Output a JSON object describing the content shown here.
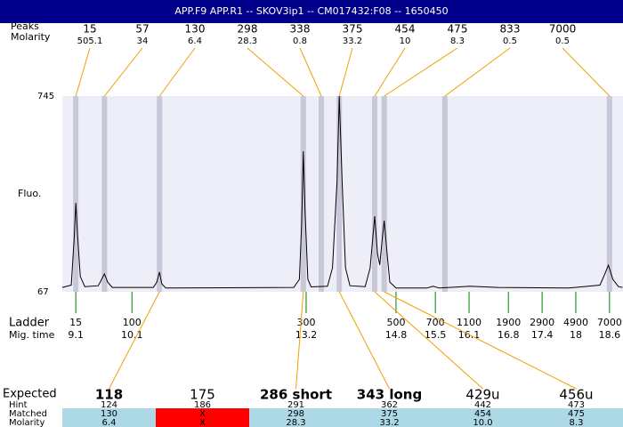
{
  "chart_data": {
    "type": "line",
    "title": "APP.F9  APP.R1 -- SKOV3ip1 -- CM017432:F08 -- 1650450",
    "y_label": "Fluo.",
    "xlim": [
      8.86,
      18.84
    ],
    "ylim": [
      67,
      745
    ],
    "yticks": [
      67,
      745
    ],
    "color": "#000000",
    "plot_color": "#eeeef8",
    "x": [
      8.86,
      9.02,
      9.07,
      9.1,
      9.13,
      9.18,
      9.26,
      9.5,
      9.56,
      9.61,
      9.67,
      9.75,
      10.48,
      10.54,
      10.59,
      10.63,
      10.7,
      12.98,
      13.08,
      13.12,
      13.15,
      13.18,
      13.23,
      13.29,
      13.58,
      13.67,
      13.75,
      13.79,
      13.84,
      13.9,
      13.98,
      14.25,
      14.34,
      14.42,
      14.47,
      14.51,
      14.56,
      14.59,
      14.64,
      14.69,
      14.8,
      15.35,
      15.46,
      15.57,
      16.11,
      16.61,
      17.88,
      18.43,
      18.52,
      18.58,
      18.66,
      18.76,
      18.83
    ],
    "values": [
      82,
      90,
      250,
      375,
      270,
      120,
      85,
      88,
      110,
      129,
      100,
      82,
      82,
      100,
      135,
      95,
      80,
      82,
      110,
      300,
      554,
      350,
      110,
      84,
      86,
      150,
      450,
      745,
      450,
      150,
      88,
      85,
      150,
      329,
      200,
      160,
      260,
      314,
      200,
      100,
      80,
      80,
      86,
      80,
      86,
      82,
      80,
      90,
      130,
      159,
      110,
      85,
      82
    ],
    "peaks": {
      "label": "Peaks",
      "molarity_label": "Molarity",
      "sizes": [
        15,
        57,
        130,
        298,
        338,
        375,
        454,
        475,
        833,
        7000
      ],
      "molarity": [
        505.1,
        34,
        6.4,
        28.3,
        0.8,
        33.2,
        10,
        8.3,
        0.5,
        0.5
      ],
      "x": [
        9.1,
        9.61,
        10.59,
        13.15,
        13.47,
        13.79,
        14.42,
        14.59,
        15.67,
        18.6
      ],
      "color": "#c8c8d8",
      "link_color": "#f0a000"
    },
    "ladder": {
      "label": "Ladder",
      "time_label": "Mig. time",
      "sizes": [
        15,
        100,
        300,
        500,
        700,
        1100,
        1900,
        2900,
        4900,
        7000
      ],
      "x": [
        9.1,
        10.1,
        13.2,
        14.8,
        15.5,
        16.1,
        16.8,
        17.4,
        18,
        18.6
      ],
      "color": "#008000"
    },
    "table": {
      "row_labels": [
        "Expected",
        "Hint",
        "Matched",
        "Molarity"
      ],
      "expected": [
        "118",
        "175",
        "286 short",
        "343 long",
        "429u",
        "456u"
      ],
      "expected_bold": [
        true,
        false,
        true,
        true,
        false,
        false
      ],
      "hint": [
        "124",
        "186",
        "291",
        "362",
        "442",
        "473"
      ],
      "matched": [
        "130",
        "X",
        "298",
        "375",
        "454",
        "475"
      ],
      "molarity": [
        "6.4",
        "X",
        "28.3",
        "33.2",
        "10.0",
        "8.3"
      ],
      "cell_colors": [
        "#add8e6",
        "#ff0000",
        "#add8e6",
        "#add8e6",
        "#add8e6",
        "#add8e6"
      ]
    }
  }
}
